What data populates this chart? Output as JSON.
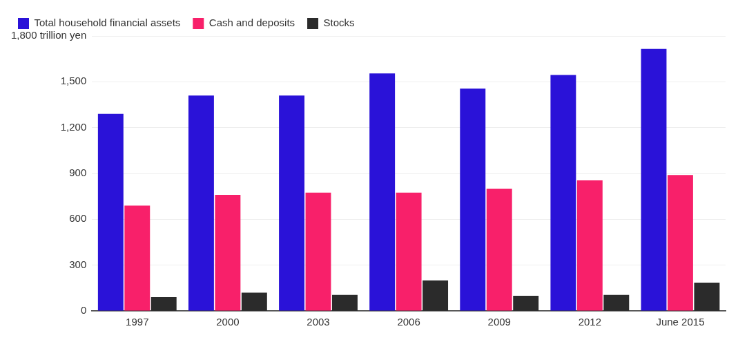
{
  "chart_data": {
    "type": "bar",
    "categories": [
      "1997",
      "2000",
      "2003",
      "2006",
      "2009",
      "2012",
      "June 2015"
    ],
    "series": [
      {
        "name": "Total household financial assets",
        "color": "#2a12d8",
        "values": [
          1290,
          1410,
          1410,
          1555,
          1455,
          1545,
          1715
        ]
      },
      {
        "name": "Cash and deposits",
        "color": "#f8206a",
        "values": [
          690,
          760,
          775,
          775,
          800,
          855,
          890
        ]
      },
      {
        "name": "Stocks",
        "color": "#2b2b2b",
        "values": [
          90,
          120,
          105,
          200,
          100,
          105,
          185
        ]
      }
    ],
    "ylim": [
      0,
      1800
    ],
    "yticks": [
      0,
      300,
      600,
      900,
      {
        "value": 1200,
        "label": "1,200"
      },
      {
        "value": 1500,
        "label": "1,500"
      },
      {
        "value": 1800,
        "label": "1,800 trillion yen"
      }
    ],
    "grid": "y",
    "legend": "top left"
  }
}
